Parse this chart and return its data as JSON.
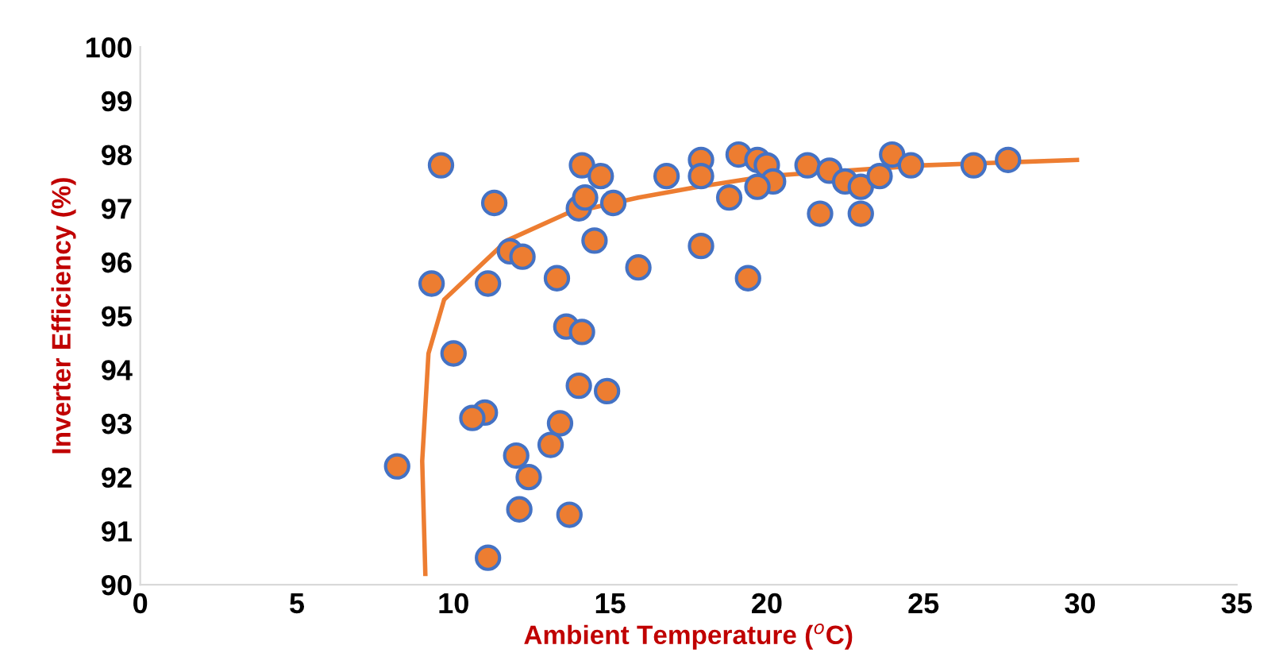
{
  "chart_data": {
    "type": "scatter",
    "xlabel": "Ambient Temperature ($^{o}$C)",
    "ylabel": "Inverter Efficiency (%)",
    "xlim": [
      0,
      35
    ],
    "xticks": [
      0,
      5,
      10,
      15,
      20,
      25,
      30,
      35
    ],
    "ylim": [
      90,
      100
    ],
    "yticks": [
      90,
      91,
      92,
      93,
      94,
      95,
      96,
      97,
      98,
      99,
      100
    ],
    "grid": false,
    "marker": "circle",
    "series": [
      {
        "color": "#ed7d31",
        "x": [
          8.2,
          9.6,
          9.3,
          10.0,
          11.3,
          11.0,
          10.6,
          11.1,
          11.1,
          11.8,
          12.2,
          12.0,
          12.4,
          12.1,
          13.1,
          13.4,
          13.3,
          13.6,
          14.1,
          14.0,
          14.9,
          13.7,
          14.1,
          14.7,
          14.0,
          14.2,
          15.1,
          14.5,
          15.9,
          16.8,
          17.9,
          17.9,
          17.9,
          19.1,
          19.7,
          20.0,
          20.2,
          19.7,
          18.8,
          21.7,
          19.4,
          21.3,
          22.0,
          22.5,
          23.0,
          23.2,
          23.5,
          24.0,
          23.6,
          24.6,
          26.6,
          27.7,
          23.0
        ],
        "values": [
          92.2,
          97.8,
          95.6,
          94.3,
          97.1,
          93.2,
          93.1,
          95.6,
          90.5,
          96.2,
          96.1,
          92.4,
          92.0,
          91.4,
          92.6,
          93.0,
          95.7,
          94.8,
          94.7,
          93.7,
          93.6,
          91.3,
          97.8,
          97.6,
          97.0,
          97.2,
          97.1,
          96.4,
          95.9,
          97.6,
          97.9,
          97.6,
          96.3,
          98.0,
          97.9,
          97.8,
          97.5,
          97.4,
          97.2,
          96.9,
          95.7,
          97.8,
          97.7,
          97.5,
          97.4,
          null,
          null,
          98.0,
          97.6,
          97.8,
          97.8,
          97.9,
          96.9
        ]
      },
      {
        "type": "line",
        "color": "#ed7d31",
        "marker": "none",
        "x": [
          9.1,
          9.0,
          9.2,
          9.7,
          11.7,
          13.6,
          15.9,
          17.8,
          20.0,
          25.0,
          29.9
        ],
        "values": [
          90.2,
          92.3,
          94.3,
          95.3,
          96.4,
          96.9,
          97.2,
          97.4,
          97.6,
          97.8,
          97.9
        ]
      }
    ]
  }
}
